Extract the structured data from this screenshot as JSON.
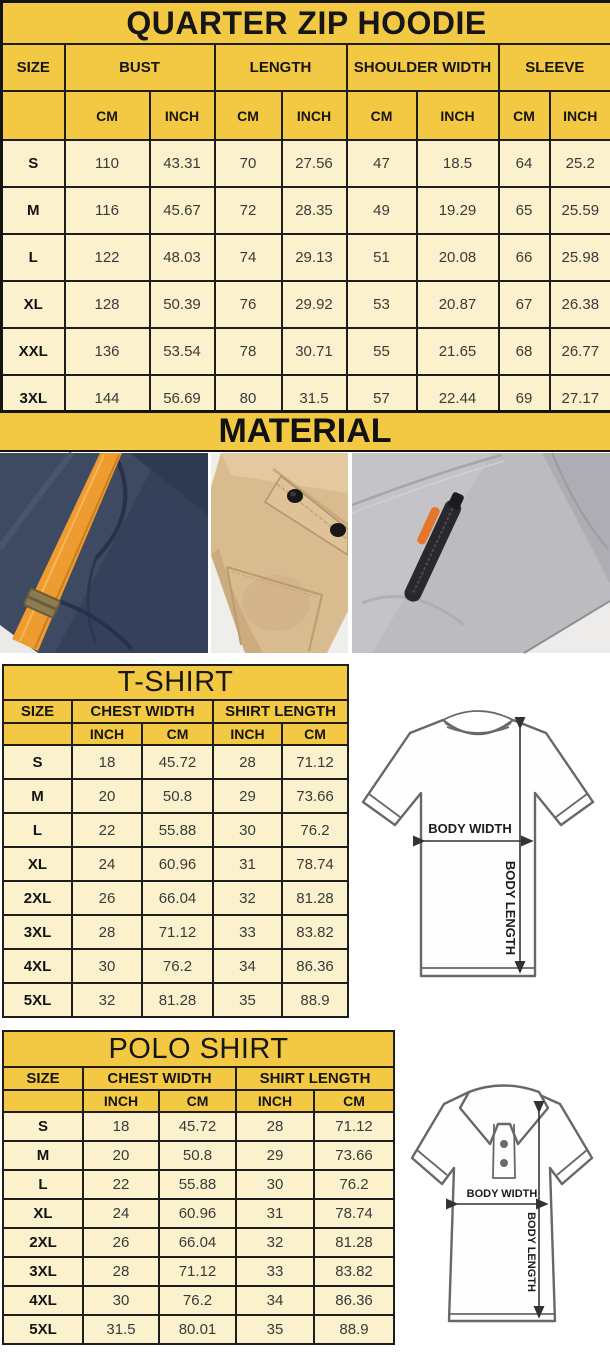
{
  "colors": {
    "header_yellow": "#f3c843",
    "row_cream": "#fbf2cd",
    "border_black": "#1d1d1d",
    "navy_fabric": "#3e4a62",
    "orange_strap": "#ee9c30",
    "khaki_fabric": "#d9bb90",
    "gray_fabric": "#bcbbbf",
    "zipper_black": "#28282d",
    "zipper_pull_orange": "#e4762c"
  },
  "hoodie_table": {
    "title": "QUARTER ZIP HOODIE",
    "size_header": "SIZE",
    "groups": [
      {
        "label": "BUST",
        "units": [
          "CM",
          "INCH"
        ]
      },
      {
        "label": "LENGTH",
        "units": [
          "CM",
          "INCH"
        ]
      },
      {
        "label": "SHOULDER WIDTH",
        "units": [
          "CM",
          "INCH"
        ]
      },
      {
        "label": "SLEEVE",
        "units": [
          "CM",
          "INCH"
        ]
      }
    ],
    "rows": [
      {
        "size": "S",
        "values": [
          "110",
          "43.31",
          "70",
          "27.56",
          "47",
          "18.5",
          "64",
          "25.2"
        ]
      },
      {
        "size": "M",
        "values": [
          "116",
          "45.67",
          "72",
          "28.35",
          "49",
          "19.29",
          "65",
          "25.59"
        ]
      },
      {
        "size": "L",
        "values": [
          "122",
          "48.03",
          "74",
          "29.13",
          "51",
          "20.08",
          "66",
          "25.98"
        ]
      },
      {
        "size": "XL",
        "values": [
          "128",
          "50.39",
          "76",
          "29.92",
          "53",
          "20.87",
          "67",
          "26.38"
        ]
      },
      {
        "size": "XXL",
        "values": [
          "136",
          "53.54",
          "78",
          "30.71",
          "55",
          "21.65",
          "68",
          "26.77"
        ]
      },
      {
        "size": "3XL",
        "values": [
          "144",
          "56.69",
          "80",
          "31.5",
          "57",
          "22.44",
          "69",
          "27.17"
        ]
      }
    ]
  },
  "material": {
    "title": "MATERIAL",
    "photos": [
      {
        "name": "navy-fleece-orange-drawstring"
      },
      {
        "name": "khaki-pocket-snap-buttons"
      },
      {
        "name": "gray-fleece-zip-pocket"
      }
    ]
  },
  "tshirt_table": {
    "title": "T-SHIRT",
    "size_header": "SIZE",
    "groups": [
      {
        "label": "CHEST WIDTH",
        "units": [
          "INCH",
          "CM"
        ]
      },
      {
        "label": "SHIRT LENGTH",
        "units": [
          "INCH",
          "CM"
        ]
      }
    ],
    "rows": [
      {
        "size": "S",
        "values": [
          "18",
          "45.72",
          "28",
          "71.12"
        ]
      },
      {
        "size": "M",
        "values": [
          "20",
          "50.8",
          "29",
          "73.66"
        ]
      },
      {
        "size": "L",
        "values": [
          "22",
          "55.88",
          "30",
          "76.2"
        ]
      },
      {
        "size": "XL",
        "values": [
          "24",
          "60.96",
          "31",
          "78.74"
        ]
      },
      {
        "size": "2XL",
        "values": [
          "26",
          "66.04",
          "32",
          "81.28"
        ]
      },
      {
        "size": "3XL",
        "values": [
          "28",
          "71.12",
          "33",
          "83.82"
        ]
      },
      {
        "size": "4XL",
        "values": [
          "30",
          "76.2",
          "34",
          "86.36"
        ]
      },
      {
        "size": "5XL",
        "values": [
          "32",
          "81.28",
          "35",
          "88.9"
        ]
      }
    ]
  },
  "polo_table": {
    "title": "POLO SHIRT",
    "size_header": "SIZE",
    "groups": [
      {
        "label": "CHEST WIDTH",
        "units": [
          "INCH",
          "CM"
        ]
      },
      {
        "label": "SHIRT LENGTH",
        "units": [
          "INCH",
          "CM"
        ]
      }
    ],
    "rows": [
      {
        "size": "S",
        "values": [
          "18",
          "45.72",
          "28",
          "71.12"
        ]
      },
      {
        "size": "M",
        "values": [
          "20",
          "50.8",
          "29",
          "73.66"
        ]
      },
      {
        "size": "L",
        "values": [
          "22",
          "55.88",
          "30",
          "76.2"
        ]
      },
      {
        "size": "XL",
        "values": [
          "24",
          "60.96",
          "31",
          "78.74"
        ]
      },
      {
        "size": "2XL",
        "values": [
          "26",
          "66.04",
          "32",
          "81.28"
        ]
      },
      {
        "size": "3XL",
        "values": [
          "28",
          "71.12",
          "33",
          "83.82"
        ]
      },
      {
        "size": "4XL",
        "values": [
          "30",
          "76.2",
          "34",
          "86.36"
        ]
      },
      {
        "size": "5XL",
        "values": [
          "31.5",
          "80.01",
          "35",
          "88.9"
        ]
      }
    ]
  },
  "diagrams": {
    "tshirt": {
      "width_label": "BODY WIDTH",
      "length_label": "BODY LENGTH"
    },
    "polo": {
      "width_label": "BODY WIDTH",
      "length_label": "BODY LENGTH"
    }
  }
}
